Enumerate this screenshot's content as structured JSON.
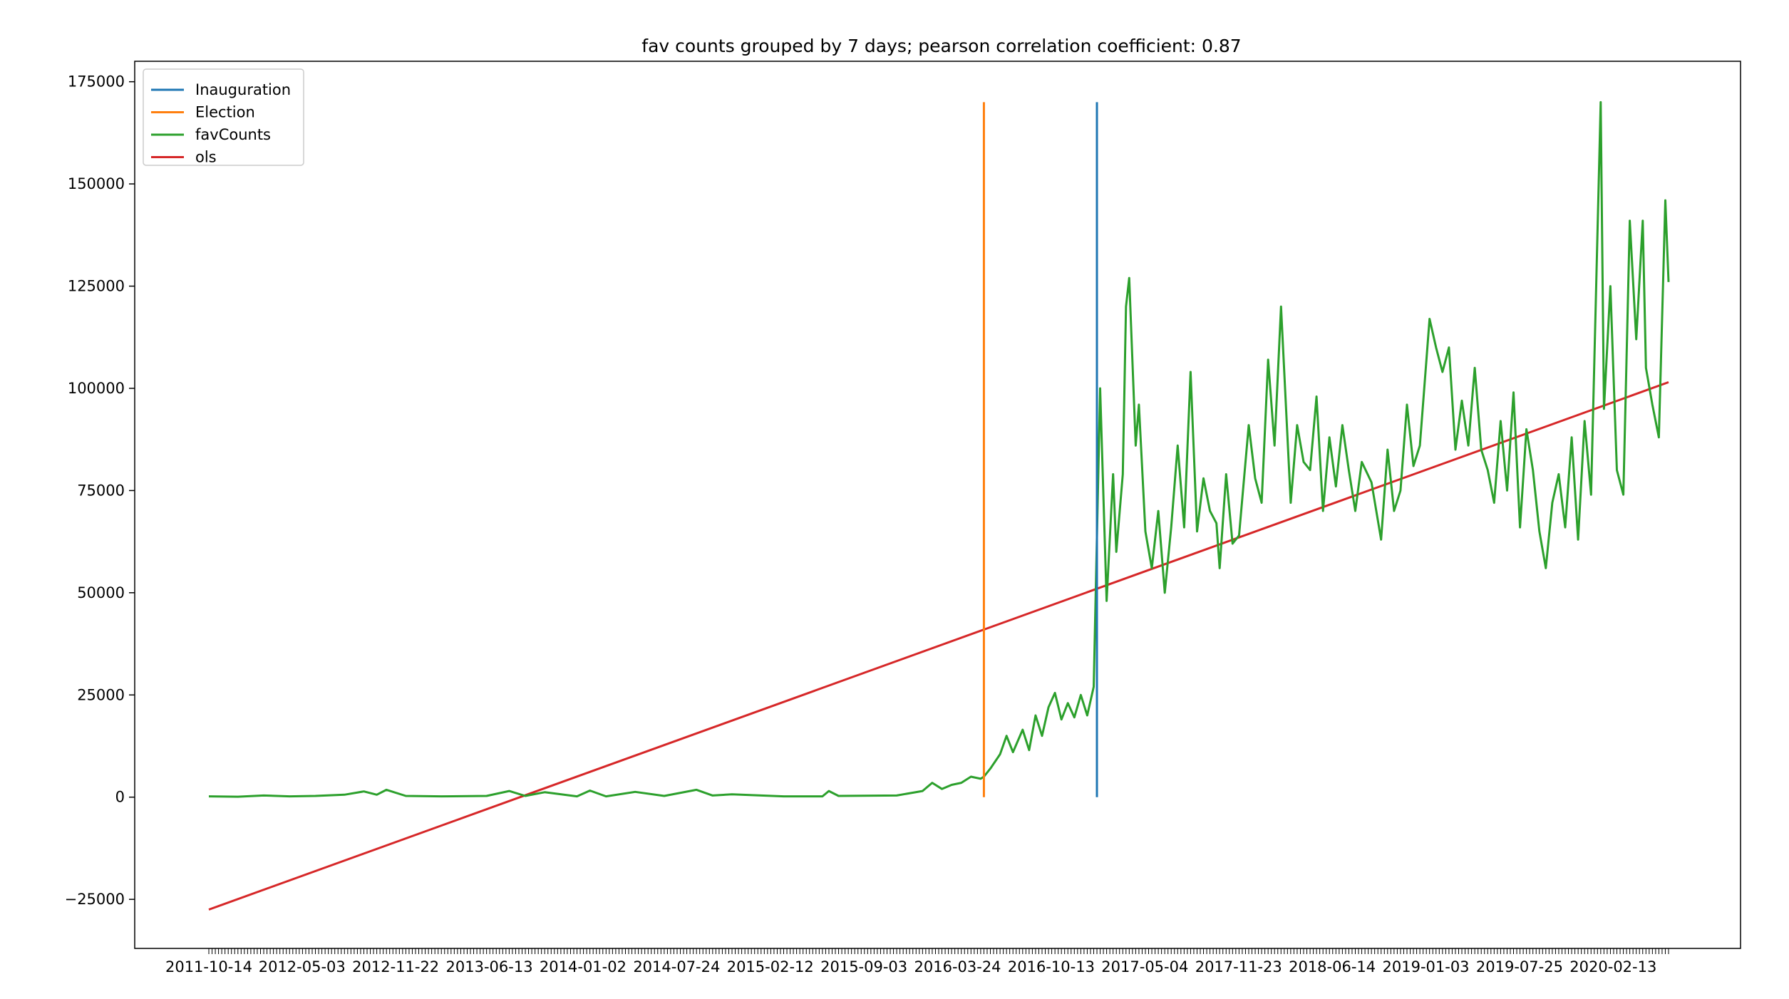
{
  "chart_data": {
    "type": "line",
    "title": "fav counts grouped by 7 days; pearson correlation coefficient: 0.87",
    "xlabel": "",
    "ylabel": "",
    "x_tick_labels": [
      "2011-10-14",
      "2012-05-03",
      "2012-11-22",
      "2013-06-13",
      "2014-01-02",
      "2014-07-24",
      "2015-02-12",
      "2015-09-03",
      "2016-03-24",
      "2016-10-13",
      "2017-05-04",
      "2017-11-23",
      "2018-06-14",
      "2019-01-03",
      "2019-07-25",
      "2020-02-13"
    ],
    "x_period_days": 7,
    "y_ticks": [
      -25000,
      0,
      25000,
      50000,
      75000,
      100000,
      125000,
      150000,
      175000
    ],
    "y_tick_labels": [
      "−25000",
      "0",
      "25000",
      "50000",
      "75000",
      "100000",
      "125000",
      "150000",
      "175000"
    ],
    "ylim": [
      -37000,
      180000
    ],
    "legend_position": "upper left",
    "grid": false,
    "series": [
      {
        "name": "Inauguration",
        "kind": "vline",
        "color": "#1f77b4",
        "x": "2017-01-20",
        "y_range": [
          0,
          170000
        ]
      },
      {
        "name": "Election",
        "kind": "vline",
        "color": "#ff7f0e",
        "x": "2016-05-20",
        "y_range": [
          0,
          170000
        ]
      },
      {
        "name": "favCounts",
        "kind": "line",
        "color": "#2ca02c",
        "points": [
          [
            "2011-10-14",
            200
          ],
          [
            "2011-12-16",
            100
          ],
          [
            "2012-02-10",
            400
          ],
          [
            "2012-04-06",
            200
          ],
          [
            "2012-06-01",
            300
          ],
          [
            "2012-08-03",
            600
          ],
          [
            "2012-09-14",
            1400
          ],
          [
            "2012-10-12",
            600
          ],
          [
            "2012-11-02",
            1800
          ],
          [
            "2012-12-14",
            300
          ],
          [
            "2013-03-01",
            200
          ],
          [
            "2013-06-07",
            300
          ],
          [
            "2013-07-26",
            1500
          ],
          [
            "2013-08-30",
            300
          ],
          [
            "2013-10-11",
            1200
          ],
          [
            "2013-12-20",
            200
          ],
          [
            "2014-01-17",
            1600
          ],
          [
            "2014-02-21",
            200
          ],
          [
            "2014-04-25",
            1300
          ],
          [
            "2014-06-27",
            300
          ],
          [
            "2014-09-05",
            1800
          ],
          [
            "2014-10-10",
            400
          ],
          [
            "2014-11-21",
            700
          ],
          [
            "2015-03-13",
            200
          ],
          [
            "2015-06-05",
            200
          ],
          [
            "2015-06-19",
            1500
          ],
          [
            "2015-07-10",
            300
          ],
          [
            "2015-11-13",
            400
          ],
          [
            "2016-01-08",
            1500
          ],
          [
            "2016-01-29",
            3500
          ],
          [
            "2016-02-19",
            2000
          ],
          [
            "2016-03-11",
            3000
          ],
          [
            "2016-04-01",
            3500
          ],
          [
            "2016-04-22",
            5000
          ],
          [
            "2016-05-13",
            4500
          ],
          [
            "2016-05-20",
            5000
          ],
          [
            "2016-06-03",
            7000
          ],
          [
            "2016-06-24",
            10500
          ],
          [
            "2016-07-08",
            15000
          ],
          [
            "2016-07-22",
            11000
          ],
          [
            "2016-08-12",
            16500
          ],
          [
            "2016-08-26",
            11500
          ],
          [
            "2016-09-09",
            20000
          ],
          [
            "2016-09-23",
            15000
          ],
          [
            "2016-10-07",
            22000
          ],
          [
            "2016-10-21",
            25500
          ],
          [
            "2016-11-04",
            19000
          ],
          [
            "2016-11-18",
            23000
          ],
          [
            "2016-12-02",
            19500
          ],
          [
            "2016-12-16",
            25000
          ],
          [
            "2016-12-30",
            20000
          ],
          [
            "2017-01-13",
            27000
          ],
          [
            "2017-01-27",
            100000
          ],
          [
            "2017-02-10",
            48000
          ],
          [
            "2017-02-24",
            79000
          ],
          [
            "2017-03-03",
            60000
          ],
          [
            "2017-03-17",
            79000
          ],
          [
            "2017-03-24",
            120000
          ],
          [
            "2017-03-31",
            127000
          ],
          [
            "2017-04-14",
            86000
          ],
          [
            "2017-04-21",
            96000
          ],
          [
            "2017-05-05",
            65000
          ],
          [
            "2017-05-19",
            56000
          ],
          [
            "2017-06-02",
            70000
          ],
          [
            "2017-06-16",
            50000
          ],
          [
            "2017-06-30",
            66000
          ],
          [
            "2017-07-14",
            86000
          ],
          [
            "2017-07-28",
            66000
          ],
          [
            "2017-08-11",
            104000
          ],
          [
            "2017-08-25",
            65000
          ],
          [
            "2017-09-08",
            78000
          ],
          [
            "2017-09-22",
            70000
          ],
          [
            "2017-10-06",
            67000
          ],
          [
            "2017-10-13",
            56000
          ],
          [
            "2017-10-27",
            79000
          ],
          [
            "2017-11-10",
            62000
          ],
          [
            "2017-11-24",
            64000
          ],
          [
            "2017-12-15",
            91000
          ],
          [
            "2017-12-29",
            78000
          ],
          [
            "2018-01-12",
            72000
          ],
          [
            "2018-01-26",
            107000
          ],
          [
            "2018-02-09",
            86000
          ],
          [
            "2018-02-23",
            120000
          ],
          [
            "2018-03-16",
            72000
          ],
          [
            "2018-03-30",
            91000
          ],
          [
            "2018-04-13",
            82000
          ],
          [
            "2018-04-27",
            80000
          ],
          [
            "2018-05-11",
            98000
          ],
          [
            "2018-05-25",
            70000
          ],
          [
            "2018-06-08",
            88000
          ],
          [
            "2018-06-22",
            76000
          ],
          [
            "2018-07-06",
            91000
          ],
          [
            "2018-07-20",
            80000
          ],
          [
            "2018-08-03",
            70000
          ],
          [
            "2018-08-17",
            82000
          ],
          [
            "2018-09-07",
            77000
          ],
          [
            "2018-09-28",
            63000
          ],
          [
            "2018-10-12",
            85000
          ],
          [
            "2018-10-26",
            70000
          ],
          [
            "2018-11-09",
            75000
          ],
          [
            "2018-11-23",
            96000
          ],
          [
            "2018-12-07",
            81000
          ],
          [
            "2018-12-21",
            86000
          ],
          [
            "2019-01-11",
            117000
          ],
          [
            "2019-01-25",
            110000
          ],
          [
            "2019-02-08",
            104000
          ],
          [
            "2019-02-22",
            110000
          ],
          [
            "2019-03-08",
            85000
          ],
          [
            "2019-03-22",
            97000
          ],
          [
            "2019-04-05",
            86000
          ],
          [
            "2019-04-19",
            105000
          ],
          [
            "2019-05-03",
            85000
          ],
          [
            "2019-05-17",
            80000
          ],
          [
            "2019-05-31",
            72000
          ],
          [
            "2019-06-14",
            92000
          ],
          [
            "2019-06-28",
            75000
          ],
          [
            "2019-07-12",
            99000
          ],
          [
            "2019-07-26",
            66000
          ],
          [
            "2019-08-09",
            90000
          ],
          [
            "2019-08-23",
            80000
          ],
          [
            "2019-09-06",
            65000
          ],
          [
            "2019-09-20",
            56000
          ],
          [
            "2019-10-04",
            72000
          ],
          [
            "2019-10-18",
            79000
          ],
          [
            "2019-11-01",
            66000
          ],
          [
            "2019-11-15",
            88000
          ],
          [
            "2019-11-29",
            63000
          ],
          [
            "2019-12-13",
            92000
          ],
          [
            "2019-12-27",
            74000
          ],
          [
            "2020-01-17",
            170000
          ],
          [
            "2020-01-24",
            95000
          ],
          [
            "2020-02-07",
            125000
          ],
          [
            "2020-02-21",
            80000
          ],
          [
            "2020-03-06",
            74000
          ],
          [
            "2020-03-20",
            141000
          ],
          [
            "2020-04-03",
            112000
          ],
          [
            "2020-04-17",
            141000
          ],
          [
            "2020-04-24",
            105000
          ],
          [
            "2020-05-08",
            96000
          ],
          [
            "2020-05-22",
            88000
          ],
          [
            "2020-06-05",
            146000
          ],
          [
            "2020-06-12",
            126000
          ]
        ]
      },
      {
        "name": "ols",
        "kind": "line",
        "color": "#d62728",
        "points": [
          [
            "2011-10-14",
            -27500
          ],
          [
            "2020-06-12",
            101500
          ]
        ]
      }
    ]
  }
}
